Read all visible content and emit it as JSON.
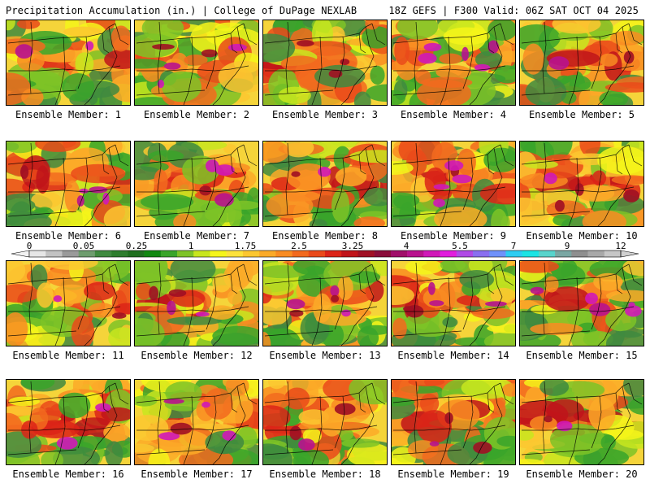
{
  "header": {
    "left": "Precipitation Accumulation (in.) | College of DuPage NEXLAB",
    "right": "18Z GEFS | F300 Valid: 06Z SAT OCT 04 2025"
  },
  "colorbar": {
    "labels": [
      "0",
      "0.05",
      "0.25",
      "1",
      "1.75",
      "2.5",
      "3.25",
      "4",
      "5.5",
      "7",
      "9",
      "12"
    ],
    "colors": [
      "#e6e6e6",
      "#c2c2c2",
      "#9a9a9a",
      "#6e9d6e",
      "#3f8a3f",
      "#2e7d2e",
      "#1f6f1f",
      "#118811",
      "#3aa52a",
      "#7ec327",
      "#c8e61e",
      "#f5f51a",
      "#fde23b",
      "#fcc730",
      "#fbaa28",
      "#f98c22",
      "#f26a1e",
      "#ea4a1a",
      "#dc2418",
      "#c0141a",
      "#a01024",
      "#8a0d3a",
      "#a00f6a",
      "#b8128e",
      "#d018b8",
      "#e11ddd",
      "#b04ae6",
      "#8a6ff0",
      "#6f91fa",
      "#2ecdf2",
      "#1de4e4",
      "#58d4cc",
      "#7aa7a3",
      "#8f8f8f",
      "#a8a8a8",
      "#c6c6c6"
    ]
  },
  "members": [
    {
      "label": "Ensemble Member: 1"
    },
    {
      "label": "Ensemble Member: 2"
    },
    {
      "label": "Ensemble Member: 3"
    },
    {
      "label": "Ensemble Member: 4"
    },
    {
      "label": "Ensemble Member: 5"
    },
    {
      "label": "Ensemble Member: 6"
    },
    {
      "label": "Ensemble Member: 7"
    },
    {
      "label": "Ensemble Member: 8"
    },
    {
      "label": "Ensemble Member: 9"
    },
    {
      "label": "Ensemble Member: 10"
    },
    {
      "label": "Ensemble Member: 11"
    },
    {
      "label": "Ensemble Member: 12"
    },
    {
      "label": "Ensemble Member: 13"
    },
    {
      "label": "Ensemble Member: 14"
    },
    {
      "label": "Ensemble Member: 15"
    },
    {
      "label": "Ensemble Member: 16"
    },
    {
      "label": "Ensemble Member: 17"
    },
    {
      "label": "Ensemble Member: 18"
    },
    {
      "label": "Ensemble Member: 19"
    },
    {
      "label": "Ensemble Member: 20"
    }
  ]
}
